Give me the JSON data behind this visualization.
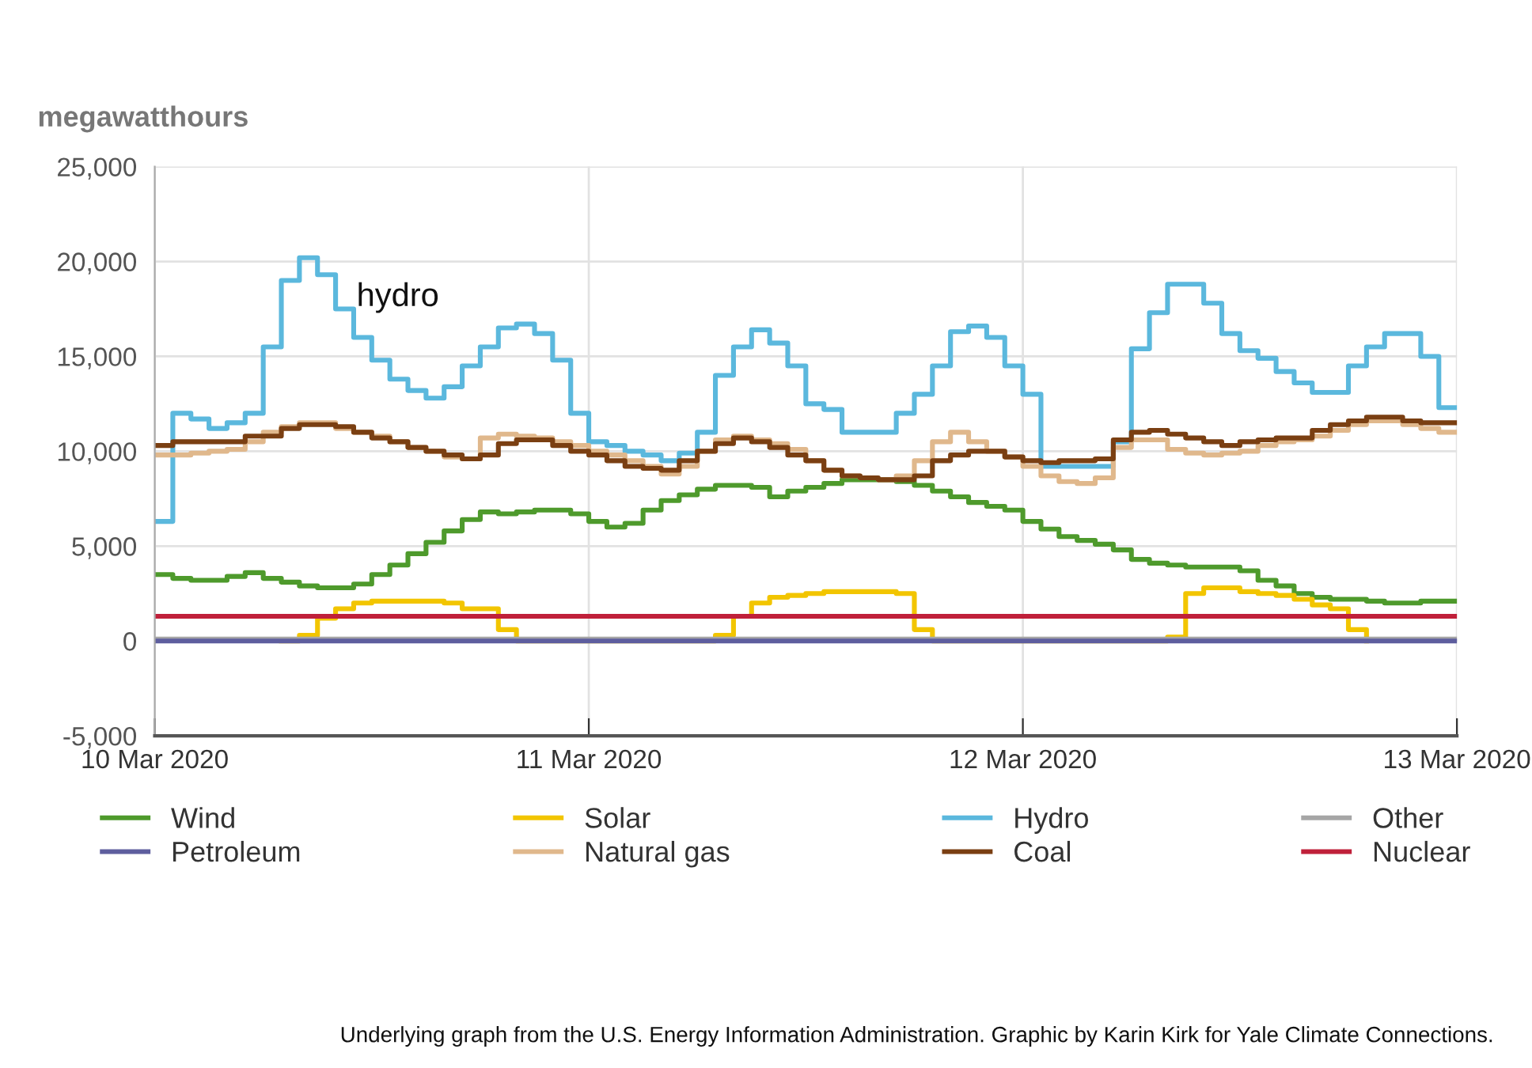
{
  "chart_data": {
    "type": "step",
    "ylabel": "megawatthours",
    "x": [
      "2020-03-10T00:00",
      "2020-03-10T01:00",
      "2020-03-10T02:00",
      "2020-03-10T03:00",
      "2020-03-10T04:00",
      "2020-03-10T05:00",
      "2020-03-10T06:00",
      "2020-03-10T07:00",
      "2020-03-10T08:00",
      "2020-03-10T09:00",
      "2020-03-10T10:00",
      "2020-03-10T11:00",
      "2020-03-10T12:00",
      "2020-03-10T13:00",
      "2020-03-10T14:00",
      "2020-03-10T15:00",
      "2020-03-10T16:00",
      "2020-03-10T17:00",
      "2020-03-10T18:00",
      "2020-03-10T19:00",
      "2020-03-10T20:00",
      "2020-03-10T21:00",
      "2020-03-10T22:00",
      "2020-03-10T23:00",
      "2020-03-11T00:00",
      "2020-03-11T01:00",
      "2020-03-11T02:00",
      "2020-03-11T03:00",
      "2020-03-11T04:00",
      "2020-03-11T05:00",
      "2020-03-11T06:00",
      "2020-03-11T07:00",
      "2020-03-11T08:00",
      "2020-03-11T09:00",
      "2020-03-11T10:00",
      "2020-03-11T11:00",
      "2020-03-11T12:00",
      "2020-03-11T13:00",
      "2020-03-11T14:00",
      "2020-03-11T15:00",
      "2020-03-11T16:00",
      "2020-03-11T17:00",
      "2020-03-11T18:00",
      "2020-03-11T19:00",
      "2020-03-11T20:00",
      "2020-03-11T21:00",
      "2020-03-11T22:00",
      "2020-03-11T23:00",
      "2020-03-12T00:00",
      "2020-03-12T01:00",
      "2020-03-12T02:00",
      "2020-03-12T03:00",
      "2020-03-12T04:00",
      "2020-03-12T05:00",
      "2020-03-12T06:00",
      "2020-03-12T07:00",
      "2020-03-12T08:00",
      "2020-03-12T09:00",
      "2020-03-12T10:00",
      "2020-03-12T11:00",
      "2020-03-12T12:00",
      "2020-03-12T13:00",
      "2020-03-12T14:00",
      "2020-03-12T15:00",
      "2020-03-12T16:00",
      "2020-03-12T17:00",
      "2020-03-12T18:00",
      "2020-03-12T19:00",
      "2020-03-12T20:00",
      "2020-03-12T21:00",
      "2020-03-12T22:00",
      "2020-03-12T23:00",
      "2020-03-13T00:00"
    ],
    "series": [
      {
        "name": "Wind",
        "color": "#4e9a2c",
        "values": [
          3500,
          3300,
          3200,
          3200,
          3400,
          3600,
          3300,
          3100,
          2900,
          2800,
          2800,
          3000,
          3500,
          4000,
          4600,
          5200,
          5800,
          6400,
          6800,
          6700,
          6800,
          6900,
          6900,
          6700,
          6300,
          6000,
          6200,
          6900,
          7400,
          7700,
          8000,
          8200,
          8200,
          8100,
          7600,
          7900,
          8100,
          8300,
          8500,
          8500,
          8500,
          8400,
          8200,
          7900,
          7600,
          7300,
          7100,
          6900,
          6300,
          5900,
          5500,
          5300,
          5100,
          4800,
          4300,
          4100,
          4000,
          3900,
          3900,
          3900,
          3700,
          3200,
          2900,
          2500,
          2300,
          2200,
          2200,
          2100,
          2000,
          2000,
          2100,
          2100,
          2100
        ]
      },
      {
        "name": "Solar",
        "color": "#f2c500",
        "values": [
          null,
          null,
          null,
          null,
          null,
          null,
          null,
          0,
          300,
          1200,
          1700,
          2000,
          2100,
          2100,
          2100,
          2100,
          2000,
          1700,
          1700,
          600,
          0,
          0,
          0,
          0,
          0,
          0,
          0,
          0,
          0,
          0,
          0,
          300,
          1300,
          2000,
          2300,
          2400,
          2500,
          2600,
          2600,
          2600,
          2600,
          2500,
          600,
          0,
          0,
          0,
          0,
          0,
          0,
          0,
          0,
          0,
          0,
          0,
          0,
          0,
          200,
          2500,
          2800,
          2800,
          2600,
          2500,
          2400,
          2200,
          1900,
          1700,
          600,
          0,
          null,
          null,
          null,
          null,
          null
        ]
      },
      {
        "name": "Hydro",
        "color": "#5bb8dd",
        "values": [
          6300,
          12000,
          11700,
          11200,
          11500,
          12000,
          15500,
          19000,
          20200,
          19300,
          17500,
          16000,
          14800,
          13800,
          13200,
          12800,
          13400,
          14500,
          15500,
          16500,
          16700,
          16200,
          14800,
          12000,
          10500,
          10300,
          10000,
          9800,
          9500,
          9900,
          11000,
          14000,
          15500,
          16400,
          15700,
          14500,
          12500,
          12200,
          11000,
          11000,
          11000,
          12000,
          13000,
          14500,
          16300,
          16600,
          16000,
          14500,
          13000,
          9200,
          9200,
          9200,
          9200,
          10500,
          15400,
          17300,
          18800,
          18800,
          17800,
          16200,
          15300,
          14900,
          14200,
          13600,
          13100,
          13100,
          14500,
          15500,
          16200,
          16200,
          15000,
          12300,
          12300
        ]
      },
      {
        "name": "Other",
        "color": "#a6a6a6",
        "x": [
          "2020-03-10T00:00",
          "2020-03-13T00:00"
        ],
        "values": [
          100,
          100
        ]
      },
      {
        "name": "Petroleum",
        "color": "#5e5e9e",
        "x": [
          "2020-03-10T00:00",
          "2020-03-13T00:00"
        ],
        "values": [
          0,
          0
        ]
      },
      {
        "name": "Natural gas",
        "color": "#e0b88c",
        "values": [
          9800,
          9800,
          9900,
          10000,
          10100,
          10500,
          11000,
          11300,
          11500,
          11500,
          11200,
          11000,
          10800,
          10500,
          10200,
          10000,
          9700,
          9600,
          10700,
          10900,
          10800,
          10700,
          10500,
          10300,
          10000,
          9800,
          9500,
          9200,
          8800,
          9200,
          10000,
          10600,
          10800,
          10600,
          10400,
          10100,
          9500,
          9000,
          8700,
          8600,
          8500,
          8700,
          9500,
          10500,
          11000,
          10500,
          10000,
          9700,
          9200,
          8700,
          8400,
          8300,
          8600,
          10200,
          10600,
          10600,
          10100,
          9900,
          9800,
          9900,
          10000,
          10300,
          10500,
          10600,
          10800,
          11100,
          11400,
          11600,
          11600,
          11400,
          11200,
          11000,
          11000
        ]
      },
      {
        "name": "Coal",
        "color": "#7a3f12",
        "values": [
          10300,
          10500,
          10500,
          10500,
          10500,
          10800,
          10800,
          11200,
          11400,
          11400,
          11300,
          11000,
          10700,
          10500,
          10200,
          10000,
          9800,
          9600,
          9800,
          10400,
          10600,
          10600,
          10300,
          10000,
          9800,
          9500,
          9200,
          9100,
          9000,
          9500,
          10000,
          10400,
          10700,
          10500,
          10200,
          9800,
          9500,
          9000,
          8700,
          8600,
          8500,
          8500,
          8700,
          9500,
          9800,
          10000,
          10000,
          9700,
          9500,
          9400,
          9500,
          9500,
          9600,
          10600,
          11000,
          11100,
          10900,
          10700,
          10500,
          10300,
          10500,
          10600,
          10700,
          10700,
          11100,
          11400,
          11600,
          11800,
          11800,
          11600,
          11500,
          11500,
          11500
        ]
      },
      {
        "name": "Nuclear",
        "color": "#c0203a",
        "x": [
          "2020-03-10T00:00",
          "2020-03-13T00:00"
        ],
        "values": [
          1300,
          1300
        ]
      }
    ],
    "xlim": [
      "2020-03-10T00:00",
      "2020-03-13T00:00"
    ],
    "xticks": [
      {
        "value": "2020-03-10T00:00",
        "label": "10 Mar 2020"
      },
      {
        "value": "2020-03-11T00:00",
        "label": "11 Mar 2020"
      },
      {
        "value": "2020-03-12T00:00",
        "label": "12 Mar 2020"
      },
      {
        "value": "2020-03-13T00:00",
        "label": "13 Mar 2020"
      }
    ],
    "ylim": [
      -5000,
      25000
    ],
    "yticks": [
      {
        "value": -5000,
        "label": "-5,000"
      },
      0,
      {
        "value": 5000,
        "label": "5,000"
      },
      {
        "value": 10000,
        "label": "10,000"
      },
      {
        "value": 15000,
        "label": "15,000"
      },
      {
        "value": 20000,
        "label": "20,000"
      },
      {
        "value": 25000,
        "label": "25,000"
      }
    ],
    "grid": true,
    "legend": "bottom",
    "line_style": "solid",
    "marker": "none",
    "annotations": [
      "hydro",
      "Underlying graph from the U.S. Energy Information Administration. Graphic by Karin Kirk for Yale Climate Connections."
    ]
  }
}
